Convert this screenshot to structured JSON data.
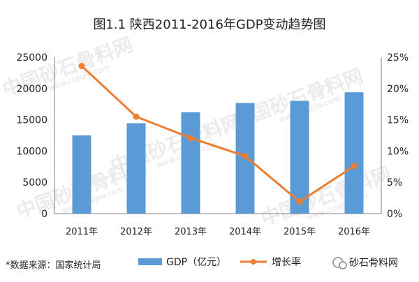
{
  "title": "图1.1 陕西2011-2016年GDP变动趋势图",
  "source": "*数据来源：国家统计局",
  "brand": "砂石骨料网",
  "watermark": {
    "text": "中国砂石骨料网",
    "url": "www.cssglw.com"
  },
  "colors": {
    "bar": "#5b9bd5",
    "line": "#ed7d31",
    "axis": "#7f7f7f"
  },
  "chart_data": {
    "type": "bar",
    "categories": [
      "2011年",
      "2012年",
      "2013年",
      "2014年",
      "2015年",
      "2016年"
    ],
    "series": [
      {
        "name": "GDP（亿元）",
        "type": "bar",
        "axis": "left",
        "values": [
          12512,
          14454,
          16205,
          17690,
          18022,
          19400
        ]
      },
      {
        "name": "增长率",
        "type": "line",
        "axis": "right",
        "values": [
          23.6,
          15.5,
          12.1,
          9.2,
          1.9,
          7.6
        ]
      }
    ],
    "ylim_left": [
      0,
      25000
    ],
    "yticks_left": [
      "0",
      "5000",
      "10000",
      "15000",
      "20000",
      "25000"
    ],
    "ylim_right": [
      0,
      25
    ],
    "yticks_right": [
      "0%",
      "5%",
      "10%",
      "15%",
      "20%",
      "25%"
    ],
    "grid": false,
    "legend": "bottom"
  }
}
